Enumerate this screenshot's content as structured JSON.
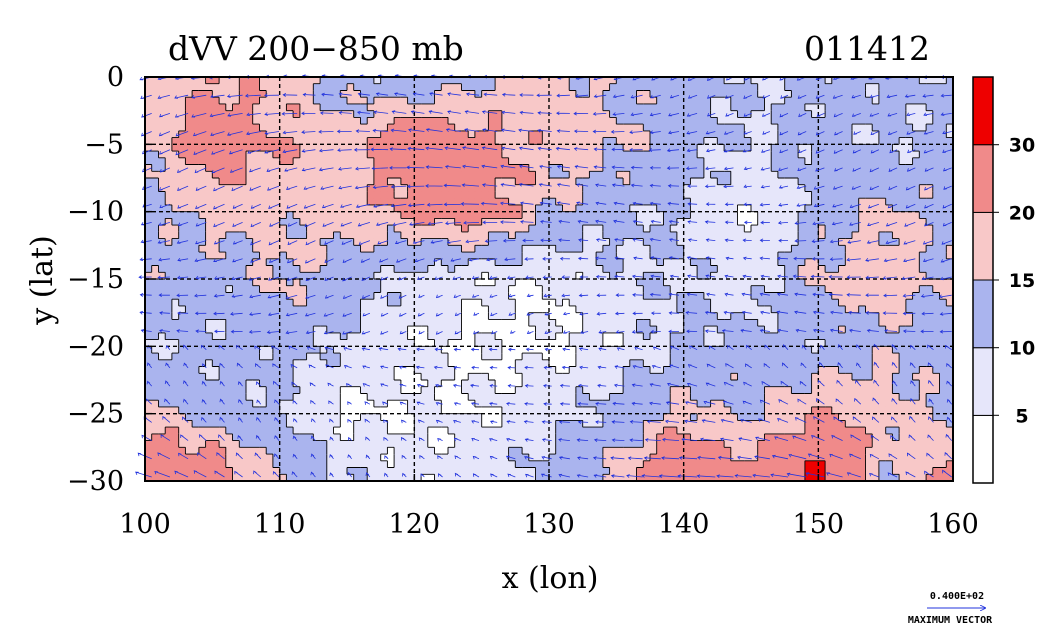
{
  "chart_data": {
    "type": "heatmap",
    "title": "dVV 200−850 mb",
    "title_right": "011412",
    "xlabel": "x (lon)",
    "ylabel": "y (lat)",
    "xlim": [
      100,
      160
    ],
    "ylim": [
      -30,
      0
    ],
    "x_ticks": [
      100,
      110,
      120,
      130,
      140,
      150,
      160
    ],
    "x_tick_labels": [
      "100",
      "110",
      "120",
      "130",
      "140",
      "150",
      "160"
    ],
    "y_ticks": [
      0,
      -5,
      -10,
      -15,
      -20,
      -25,
      -30
    ],
    "y_tick_labels": [
      "0",
      "−5",
      "−10",
      "−15",
      "−20",
      "−25",
      "−30"
    ],
    "grid": true,
    "colorbar": {
      "levels": [
        0,
        5,
        10,
        15,
        20,
        30,
        35
      ],
      "labels": [
        "5",
        "10",
        "15",
        "20",
        "30"
      ],
      "colors": [
        "#ffffff",
        "#e6e6fa",
        "#aab4ee",
        "#f8c8c8",
        "#f08a8a",
        "#ee0000"
      ]
    },
    "field_grid": {
      "lon": [
        100,
        105,
        110,
        115,
        120,
        125,
        130,
        135,
        140,
        145,
        150,
        155,
        160
      ],
      "lat": [
        0,
        -5,
        -10,
        -15,
        -20,
        -25,
        -30
      ],
      "values": [
        [
          14,
          20,
          18,
          12,
          11,
          14,
          17,
          14,
          12,
          10,
          11,
          12,
          10
        ],
        [
          16,
          24,
          20,
          18,
          25,
          22,
          18,
          16,
          12,
          9,
          12,
          10,
          11
        ],
        [
          12,
          18,
          16,
          17,
          21,
          24,
          15,
          11,
          10,
          5,
          12,
          16,
          14
        ],
        [
          14,
          11,
          16,
          13,
          8,
          6,
          5,
          9,
          10,
          7,
          16,
          18,
          14
        ],
        [
          10,
          11,
          12,
          9,
          6,
          4,
          4,
          6,
          11,
          12,
          11,
          14,
          12
        ],
        [
          18,
          12,
          10,
          4,
          5,
          5,
          8,
          12,
          16,
          14,
          20,
          18,
          14
        ],
        [
          30,
          26,
          16,
          10,
          6,
          8,
          12,
          16,
          32,
          22,
          33,
          14,
          24
        ]
      ]
    },
    "vector_reference": {
      "value": "0.400E+02",
      "label": "MAXIMUM VECTOR"
    }
  },
  "colors": {
    "vector": "#2233dd",
    "contour": "#000000",
    "grid": "#000000"
  }
}
